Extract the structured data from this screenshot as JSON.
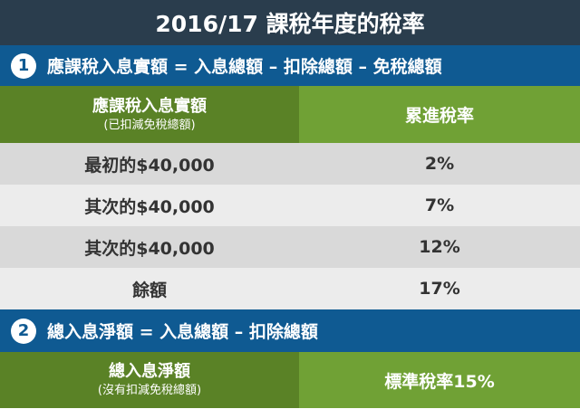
{
  "title": "2016/17 課稅年度的稅率",
  "formula1": {
    "number": "1",
    "text": "應課稅入息實額 = 入息總額 – 扣除總額 – 免稅總額"
  },
  "table": {
    "header": {
      "col1_main": "應課稅入息實額",
      "col1_sub": "(已扣減免稅總額)",
      "col2": "累進稅率"
    },
    "rows": [
      {
        "band": "最初的$40,000",
        "rate": "2%"
      },
      {
        "band": "其次的$40,000",
        "rate": "7%"
      },
      {
        "band": "其次的$40,000",
        "rate": "12%"
      },
      {
        "band": "餘額",
        "rate": "17%"
      }
    ]
  },
  "formula2": {
    "number": "2",
    "text": "總入息淨額 = 入息總額 – 扣除總額"
  },
  "standard": {
    "col1_main": "總入息淨額",
    "col1_sub": "(沒有扣減免稅總額)",
    "col2": "標準稅率15%"
  },
  "colors": {
    "title_bg": "#2a3d4d",
    "formula_bg": "#0f5a92",
    "header_dark": "#5a8226",
    "header_light": "#70a135",
    "row_dark": "#d9d9d9",
    "row_light": "#ececec"
  }
}
